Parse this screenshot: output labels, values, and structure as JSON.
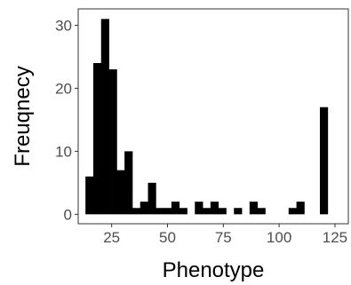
{
  "chart_data": {
    "type": "bar",
    "xlabel": "Phenotype",
    "ylabel": "Freuqnecy",
    "xlim": [
      10,
      131
    ],
    "ylim": [
      -1.5,
      32.6
    ],
    "x_ticks": [
      25,
      50,
      75,
      100,
      125
    ],
    "y_ticks": [
      0,
      10,
      20,
      30
    ],
    "bin_width": 3.5,
    "bins": [
      {
        "x": 15.0,
        "value": 6
      },
      {
        "x": 18.5,
        "value": 24
      },
      {
        "x": 22.0,
        "value": 31
      },
      {
        "x": 25.5,
        "value": 23
      },
      {
        "x": 29.0,
        "value": 7
      },
      {
        "x": 32.5,
        "value": 10
      },
      {
        "x": 36.0,
        "value": 1
      },
      {
        "x": 39.5,
        "value": 2
      },
      {
        "x": 43.0,
        "value": 5
      },
      {
        "x": 46.5,
        "value": 1
      },
      {
        "x": 50.0,
        "value": 1
      },
      {
        "x": 53.5,
        "value": 2
      },
      {
        "x": 57.0,
        "value": 1
      },
      {
        "x": 60.5,
        "value": 0
      },
      {
        "x": 64.0,
        "value": 2
      },
      {
        "x": 67.5,
        "value": 1
      },
      {
        "x": 71.0,
        "value": 2
      },
      {
        "x": 74.5,
        "value": 1
      },
      {
        "x": 78.0,
        "value": 0
      },
      {
        "x": 81.5,
        "value": 1
      },
      {
        "x": 85.0,
        "value": 0
      },
      {
        "x": 88.5,
        "value": 2
      },
      {
        "x": 92.0,
        "value": 1
      },
      {
        "x": 95.5,
        "value": 0
      },
      {
        "x": 99.0,
        "value": 0
      },
      {
        "x": 102.5,
        "value": 0
      },
      {
        "x": 106.0,
        "value": 1
      },
      {
        "x": 109.5,
        "value": 2
      },
      {
        "x": 113.0,
        "value": 0
      },
      {
        "x": 116.5,
        "value": 0
      },
      {
        "x": 120.0,
        "value": 17
      }
    ],
    "bar_color": "#000000",
    "background": "#ffffff",
    "panel_border_color": "#333333",
    "grid": false
  }
}
